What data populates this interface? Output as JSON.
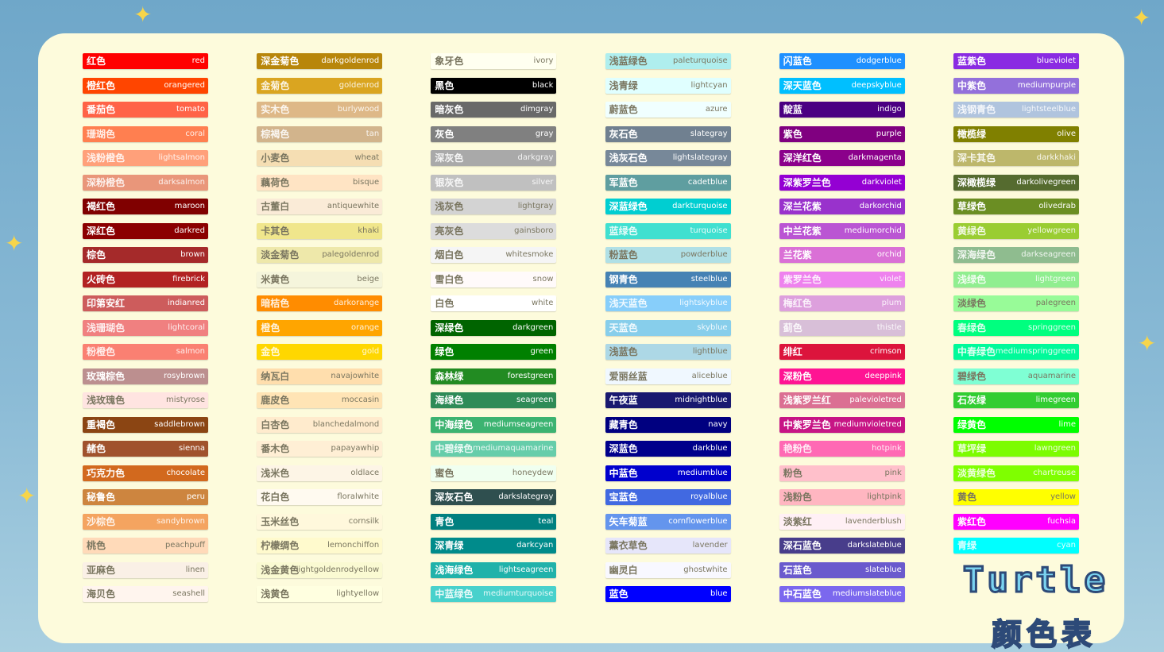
{
  "title": "Turtle",
  "subtitle": "颜色表",
  "columns": [
    [
      {
        "cn": "红色",
        "en": "red"
      },
      {
        "cn": "橙红色",
        "en": "orangered"
      },
      {
        "cn": "番茄色",
        "en": "tomato"
      },
      {
        "cn": "珊瑚色",
        "en": "coral"
      },
      {
        "cn": "浅粉橙色",
        "en": "lightsalmon"
      },
      {
        "cn": "深粉橙色",
        "en": "darksalmon"
      },
      {
        "cn": "褐红色",
        "en": "maroon"
      },
      {
        "cn": "深红色",
        "en": "darkred"
      },
      {
        "cn": "棕色",
        "en": "brown"
      },
      {
        "cn": "火砖色",
        "en": "firebrick"
      },
      {
        "cn": "印第安红",
        "en": "indianred"
      },
      {
        "cn": "浅珊瑚色",
        "en": "lightcoral"
      },
      {
        "cn": "粉橙色",
        "en": "salmon"
      },
      {
        "cn": "玫瑰棕色",
        "en": "rosybrown"
      },
      {
        "cn": "浅玫瑰色",
        "en": "mistyrose"
      },
      {
        "cn": "重褐色",
        "en": "saddlebrown"
      },
      {
        "cn": "赭色",
        "en": "sienna"
      },
      {
        "cn": "巧克力色",
        "en": "chocolate"
      },
      {
        "cn": "秘鲁色",
        "en": "peru"
      },
      {
        "cn": "沙棕色",
        "en": "sandybrown"
      },
      {
        "cn": "桃色",
        "en": "peachpuff"
      },
      {
        "cn": "亚麻色",
        "en": "linen"
      },
      {
        "cn": "海贝色",
        "en": "seashell"
      }
    ],
    [
      {
        "cn": "深金菊色",
        "en": "darkgoldenrod"
      },
      {
        "cn": "金菊色",
        "en": "goldenrod"
      },
      {
        "cn": "实木色",
        "en": "burlywood"
      },
      {
        "cn": "棕褐色",
        "en": "tan"
      },
      {
        "cn": "小麦色",
        "en": "wheat"
      },
      {
        "cn": "藕荷色",
        "en": "bisque"
      },
      {
        "cn": "古董白",
        "en": "antiquewhite"
      },
      {
        "cn": "卡其色",
        "en": "khaki"
      },
      {
        "cn": "淡金菊色",
        "en": "palegoldenrod"
      },
      {
        "cn": "米黄色",
        "en": "beige"
      },
      {
        "cn": "暗桔色",
        "en": "darkorange"
      },
      {
        "cn": "橙色",
        "en": "orange"
      },
      {
        "cn": "金色",
        "en": "gold"
      },
      {
        "cn": "纳瓦白",
        "en": "navajowhite"
      },
      {
        "cn": "鹿皮色",
        "en": "moccasin"
      },
      {
        "cn": "白杏色",
        "en": "blanchedalmond"
      },
      {
        "cn": "番木色",
        "en": "papayawhip"
      },
      {
        "cn": "浅米色",
        "en": "oldlace"
      },
      {
        "cn": "花白色",
        "en": "floralwhite"
      },
      {
        "cn": "玉米丝色",
        "en": "cornsilk"
      },
      {
        "cn": "柠檬绸色",
        "en": "lemonchiffon"
      },
      {
        "cn": "浅金黄色",
        "en": "lightgoldenrodyellow"
      },
      {
        "cn": "浅黄色",
        "en": "lightyellow"
      }
    ],
    [
      {
        "cn": "象牙色",
        "en": "ivory"
      },
      {
        "cn": "黑色",
        "en": "black"
      },
      {
        "cn": "暗灰色",
        "en": "dimgray"
      },
      {
        "cn": "灰色",
        "en": "gray"
      },
      {
        "cn": "深灰色",
        "en": "darkgray"
      },
      {
        "cn": "银灰色",
        "en": "silver"
      },
      {
        "cn": "浅灰色",
        "en": "lightgray"
      },
      {
        "cn": "亮灰色",
        "en": "gainsboro"
      },
      {
        "cn": "烟白色",
        "en": "whitesmoke"
      },
      {
        "cn": "雪白色",
        "en": "snow"
      },
      {
        "cn": "白色",
        "en": "white"
      },
      {
        "cn": "深绿色",
        "en": "darkgreen"
      },
      {
        "cn": "绿色",
        "en": "green"
      },
      {
        "cn": "森林绿",
        "en": "forestgreen"
      },
      {
        "cn": "海绿色",
        "en": "seagreen"
      },
      {
        "cn": "中海绿色",
        "en": "mediumseagreen"
      },
      {
        "cn": "中碧绿色",
        "en": "mediumaquamarine"
      },
      {
        "cn": "蜜色",
        "en": "honeydew"
      },
      {
        "cn": "深灰石色",
        "en": "darkslategray"
      },
      {
        "cn": "青色",
        "en": "teal"
      },
      {
        "cn": "深青绿",
        "en": "darkcyan"
      },
      {
        "cn": "浅海绿色",
        "en": "lightseagreen"
      },
      {
        "cn": "中蓝绿色",
        "en": "mediumturquoise"
      }
    ],
    [
      {
        "cn": "浅蓝绿色",
        "en": "paleturquoise"
      },
      {
        "cn": "浅青绿",
        "en": "lightcyan"
      },
      {
        "cn": "蔚蓝色",
        "en": "azure"
      },
      {
        "cn": "灰石色",
        "en": "slategray"
      },
      {
        "cn": "浅灰石色",
        "en": "lightslategray"
      },
      {
        "cn": "军蓝色",
        "en": "cadetblue"
      },
      {
        "cn": "深蓝绿色",
        "en": "darkturquoise"
      },
      {
        "cn": "蓝绿色",
        "en": "turquoise"
      },
      {
        "cn": "粉蓝色",
        "en": "powderblue"
      },
      {
        "cn": "钢青色",
        "en": "steelblue"
      },
      {
        "cn": "浅天蓝色",
        "en": "lightskyblue"
      },
      {
        "cn": "天蓝色",
        "en": "skyblue"
      },
      {
        "cn": "浅蓝色",
        "en": "lightblue"
      },
      {
        "cn": "爱丽丝蓝",
        "en": "aliceblue"
      },
      {
        "cn": "午夜蓝",
        "en": "midnightblue"
      },
      {
        "cn": "藏青色",
        "en": "navy"
      },
      {
        "cn": "深蓝色",
        "en": "darkblue"
      },
      {
        "cn": "中蓝色",
        "en": "mediumblue"
      },
      {
        "cn": "宝蓝色",
        "en": "royalblue"
      },
      {
        "cn": "矢车菊蓝",
        "en": "cornflowerblue"
      },
      {
        "cn": "薰衣草色",
        "en": "lavender"
      },
      {
        "cn": "幽灵白",
        "en": "ghostwhite"
      },
      {
        "cn": "蓝色",
        "en": "blue"
      }
    ],
    [
      {
        "cn": "闪蓝色",
        "en": "dodgerblue"
      },
      {
        "cn": "深天蓝色",
        "en": "deepskyblue"
      },
      {
        "cn": "靛蓝",
        "en": "indigo"
      },
      {
        "cn": "紫色",
        "en": "purple"
      },
      {
        "cn": "深洋红色",
        "en": "darkmagenta"
      },
      {
        "cn": "深紫罗兰色",
        "en": "darkviolet"
      },
      {
        "cn": "深兰花紫",
        "en": "darkorchid"
      },
      {
        "cn": "中兰花紫",
        "en": "mediumorchid"
      },
      {
        "cn": "兰花紫",
        "en": "orchid"
      },
      {
        "cn": "紫罗兰色",
        "en": "violet"
      },
      {
        "cn": "梅红色",
        "en": "plum"
      },
      {
        "cn": "蓟色",
        "en": "thistle"
      },
      {
        "cn": "绯红",
        "en": "crimson"
      },
      {
        "cn": "深粉色",
        "en": "deeppink"
      },
      {
        "cn": "浅紫罗兰红",
        "en": "palevioletred"
      },
      {
        "cn": "中紫罗兰色",
        "en": "mediumvioletred"
      },
      {
        "cn": "艳粉色",
        "en": "hotpink"
      },
      {
        "cn": "粉色",
        "en": "pink"
      },
      {
        "cn": "浅粉色",
        "en": "lightpink"
      },
      {
        "cn": "淡紫红",
        "en": "lavenderblush"
      },
      {
        "cn": "深石蓝色",
        "en": "darkslateblue"
      },
      {
        "cn": "石蓝色",
        "en": "slateblue"
      },
      {
        "cn": "中石蓝色",
        "en": "mediumslateblue"
      }
    ],
    [
      {
        "cn": "蓝紫色",
        "en": "blueviolet"
      },
      {
        "cn": "中紫色",
        "en": "mediumpurple"
      },
      {
        "cn": "浅钢青色",
        "en": "lightsteelblue"
      },
      {
        "cn": "橄榄绿",
        "en": "olive"
      },
      {
        "cn": "深卡其色",
        "en": "darkkhaki"
      },
      {
        "cn": "深橄榄绿",
        "en": "darkolivegreen"
      },
      {
        "cn": "草绿色",
        "en": "olivedrab"
      },
      {
        "cn": "黄绿色",
        "en": "yellowgreen"
      },
      {
        "cn": "深海绿色",
        "en": "darkseagreen"
      },
      {
        "cn": "浅绿色",
        "en": "lightgreen"
      },
      {
        "cn": "淡绿色",
        "en": "palegreen"
      },
      {
        "cn": "春绿色",
        "en": "springgreen"
      },
      {
        "cn": "中春绿色",
        "en": "mediumspringgreen"
      },
      {
        "cn": "碧绿色",
        "en": "aquamarine"
      },
      {
        "cn": "石灰绿",
        "en": "limegreen"
      },
      {
        "cn": "绿黄色",
        "en": "lime"
      },
      {
        "cn": "草坪绿",
        "en": "lawngreen"
      },
      {
        "cn": "淡黄绿色",
        "en": "chartreuse"
      },
      {
        "cn": "黄色",
        "en": "yellow"
      },
      {
        "cn": "紫红色",
        "en": "fuchsia"
      },
      {
        "cn": "青绿",
        "en": "cyan"
      }
    ]
  ]
}
